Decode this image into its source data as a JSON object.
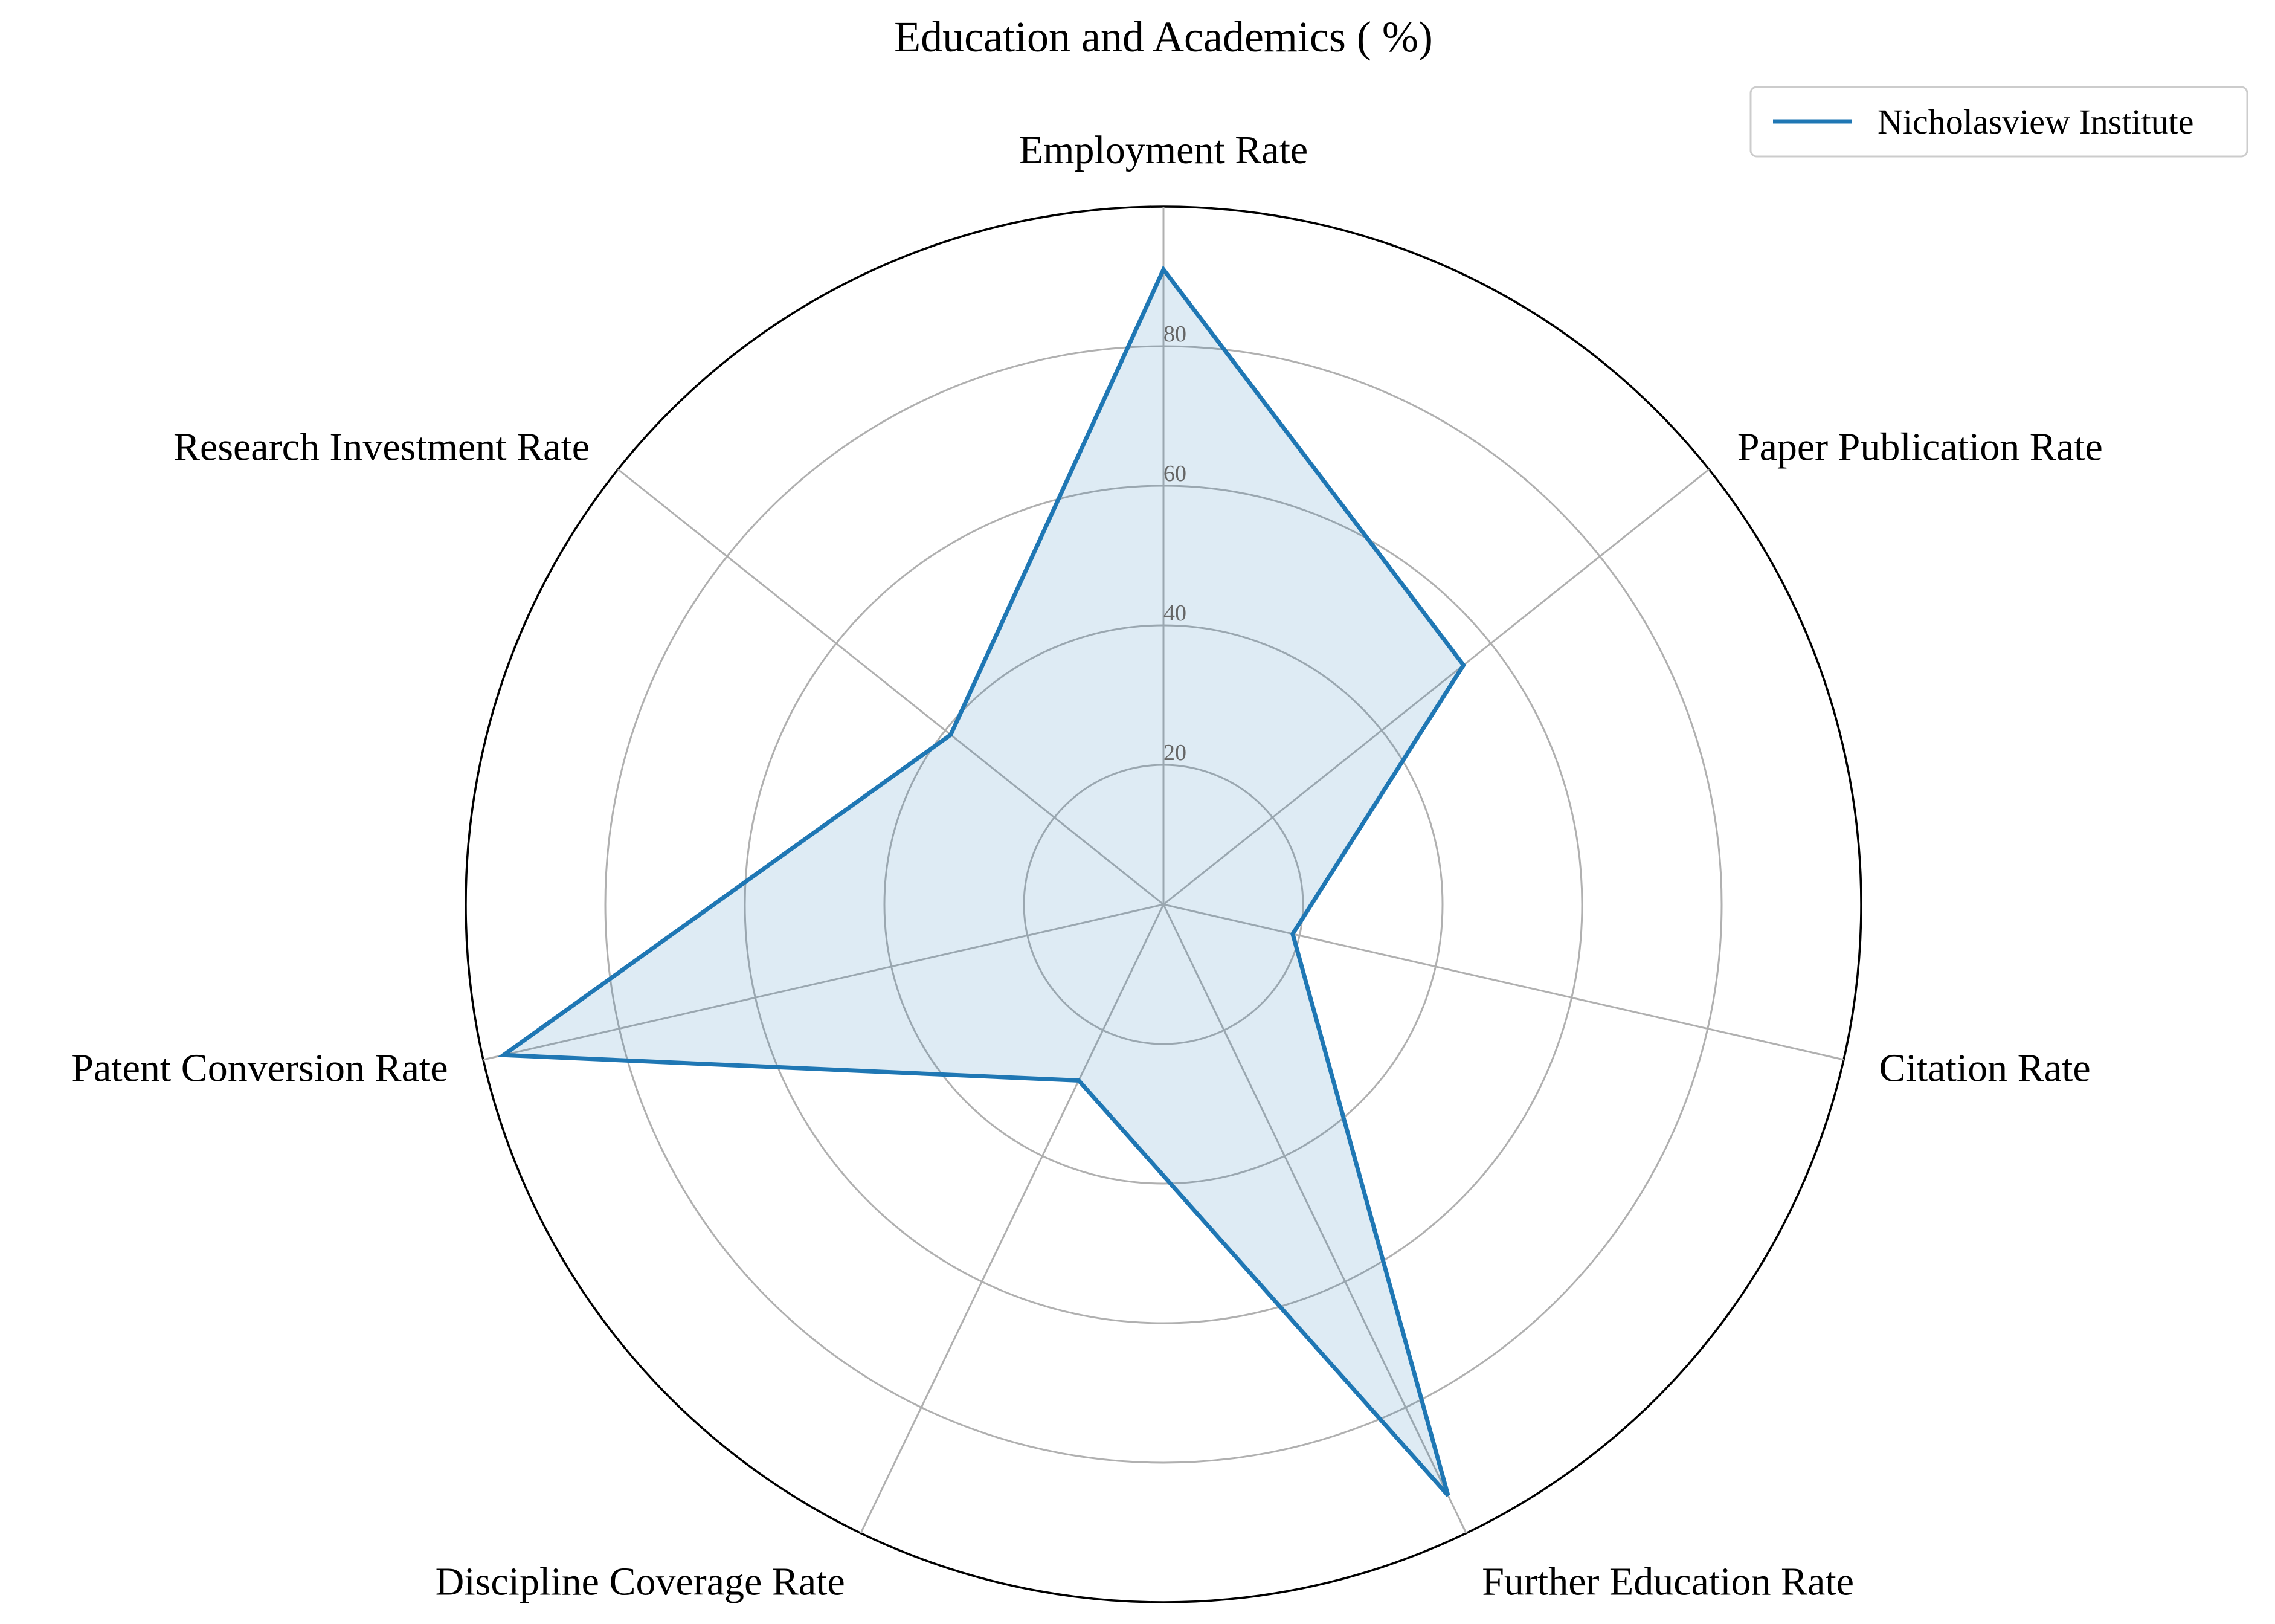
{
  "chart_data": {
    "type": "radar",
    "title": "Education and Academics ( %)",
    "categories": [
      "Employment Rate",
      "Paper Publication Rate",
      "Citation Rate",
      "Further Education Rate",
      "Discipline Coverage Rate",
      "Patent Conversion Rate",
      "Research Investment Rate"
    ],
    "series": [
      {
        "name": "Nicholasview Institute",
        "values": [
          91,
          55,
          19,
          94,
          28,
          97,
          39
        ],
        "color": "#1f77b4",
        "fill_color": "#1f77b4",
        "fill_opacity": 0.15
      }
    ],
    "rlim": [
      0,
      100
    ],
    "r_ticks": [
      20,
      40,
      60,
      80
    ],
    "r_tick_labels": [
      "20",
      "40",
      "60",
      "80"
    ],
    "grid": true,
    "grid_color": "#b0b0b0",
    "legend_position": "top-right"
  }
}
